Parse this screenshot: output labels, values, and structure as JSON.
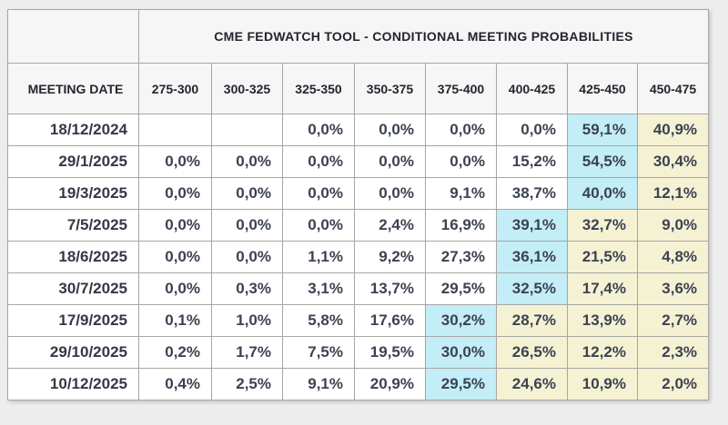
{
  "colors": {
    "page_background": "#ededed",
    "header_background": "#f6f6f6",
    "cell_background": "#ffffff",
    "border": "#a6a6a6",
    "blue": "#c3edf7",
    "yellow": "#f5f2d3",
    "header_text": "#22252e",
    "value_text": "#3b4252"
  },
  "chart_data": {
    "type": "table",
    "title": "CME FEDWATCH TOOL - CONDITIONAL MEETING PROBABILITIES",
    "row_header": "MEETING DATE",
    "columns": [
      "275-300",
      "300-325",
      "325-350",
      "350-375",
      "375-400",
      "400-425",
      "425-450",
      "450-475"
    ],
    "rows": [
      {
        "date": "18/12/2024",
        "values": [
          "",
          "",
          "0,0%",
          "0,0%",
          "0,0%",
          "0,0%",
          "59,1%",
          "40,9%"
        ],
        "highlights": [
          "",
          "",
          "",
          "",
          "",
          "",
          "blue",
          "yellow"
        ]
      },
      {
        "date": "29/1/2025",
        "values": [
          "0,0%",
          "0,0%",
          "0,0%",
          "0,0%",
          "0,0%",
          "15,2%",
          "54,5%",
          "30,4%"
        ],
        "highlights": [
          "",
          "",
          "",
          "",
          "",
          "",
          "blue",
          "yellow"
        ]
      },
      {
        "date": "19/3/2025",
        "values": [
          "0,0%",
          "0,0%",
          "0,0%",
          "0,0%",
          "9,1%",
          "38,7%",
          "40,0%",
          "12,1%"
        ],
        "highlights": [
          "",
          "",
          "",
          "",
          "",
          "",
          "blue",
          "yellow"
        ]
      },
      {
        "date": "7/5/2025",
        "values": [
          "0,0%",
          "0,0%",
          "0,0%",
          "2,4%",
          "16,9%",
          "39,1%",
          "32,7%",
          "9,0%"
        ],
        "highlights": [
          "",
          "",
          "",
          "",
          "",
          "blue",
          "yellow",
          "yellow"
        ]
      },
      {
        "date": "18/6/2025",
        "values": [
          "0,0%",
          "0,0%",
          "1,1%",
          "9,2%",
          "27,3%",
          "36,1%",
          "21,5%",
          "4,8%"
        ],
        "highlights": [
          "",
          "",
          "",
          "",
          "",
          "blue",
          "yellow",
          "yellow"
        ]
      },
      {
        "date": "30/7/2025",
        "values": [
          "0,0%",
          "0,3%",
          "3,1%",
          "13,7%",
          "29,5%",
          "32,5%",
          "17,4%",
          "3,6%"
        ],
        "highlights": [
          "",
          "",
          "",
          "",
          "",
          "blue",
          "yellow",
          "yellow"
        ]
      },
      {
        "date": "17/9/2025",
        "values": [
          "0,1%",
          "1,0%",
          "5,8%",
          "17,6%",
          "30,2%",
          "28,7%",
          "13,9%",
          "2,7%"
        ],
        "highlights": [
          "",
          "",
          "",
          "",
          "blue",
          "yellow",
          "yellow",
          "yellow"
        ]
      },
      {
        "date": "29/10/2025",
        "values": [
          "0,2%",
          "1,7%",
          "7,5%",
          "19,5%",
          "30,0%",
          "26,5%",
          "12,2%",
          "2,3%"
        ],
        "highlights": [
          "",
          "",
          "",
          "",
          "blue",
          "yellow",
          "yellow",
          "yellow"
        ]
      },
      {
        "date": "10/12/2025",
        "values": [
          "0,4%",
          "2,5%",
          "9,1%",
          "20,9%",
          "29,5%",
          "24,6%",
          "10,9%",
          "2,0%"
        ],
        "highlights": [
          "",
          "",
          "",
          "",
          "blue",
          "yellow",
          "yellow",
          "yellow"
        ]
      }
    ]
  }
}
